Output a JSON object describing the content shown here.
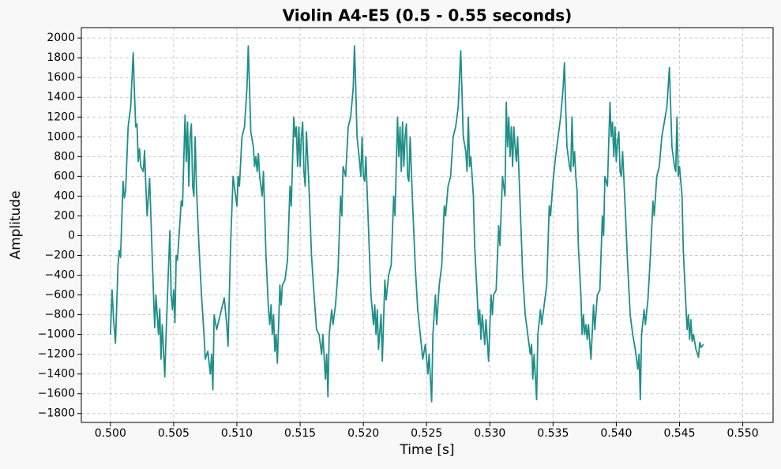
{
  "chart_data": {
    "type": "line",
    "title": "Violin A4-E5 (0.5 - 0.55 seconds)",
    "x_label": "Time [s]",
    "y_label": "Amplitude",
    "xlim": [
      0.4977,
      0.5524
    ],
    "ylim": [
      -1890,
      2105
    ],
    "grid": true,
    "xticks": [
      {
        "value": 0.5,
        "label": "0.500"
      },
      {
        "value": 0.505,
        "label": "0.505"
      },
      {
        "value": 0.51,
        "label": "0.510"
      },
      {
        "value": 0.515,
        "label": "0.515"
      },
      {
        "value": 0.52,
        "label": "0.520"
      },
      {
        "value": 0.525,
        "label": "0.525"
      },
      {
        "value": 0.53,
        "label": "0.530"
      },
      {
        "value": 0.535,
        "label": "0.535"
      },
      {
        "value": 0.54,
        "label": "0.540"
      },
      {
        "value": 0.545,
        "label": "0.545"
      },
      {
        "value": 0.55,
        "label": "0.550"
      }
    ],
    "yticks": [
      {
        "value": -1800,
        "label": "−1800"
      },
      {
        "value": -1600,
        "label": "−1600"
      },
      {
        "value": -1400,
        "label": "−1400"
      },
      {
        "value": -1200,
        "label": "−1200"
      },
      {
        "value": -1000,
        "label": "−1000"
      },
      {
        "value": -800,
        "label": "−800"
      },
      {
        "value": -600,
        "label": "−600"
      },
      {
        "value": -400,
        "label": "−400"
      },
      {
        "value": -200,
        "label": "−200"
      },
      0,
      200,
      400,
      600,
      800,
      1000,
      1200,
      1400,
      1600,
      1800,
      2000
    ],
    "color": "#1f8f88",
    "x": [
      0.5,
      0.50013,
      0.50025,
      0.5004,
      0.5006,
      0.5007,
      0.5008,
      0.501,
      0.5011,
      0.5012,
      0.5014,
      0.5016,
      0.5018,
      0.5019,
      0.502,
      0.5021,
      0.5022,
      0.5023,
      0.5024,
      0.5026,
      0.5027,
      0.5028,
      0.5029,
      0.5031,
      0.5033,
      0.5035,
      0.5036,
      0.5038,
      0.5039,
      0.504,
      0.5041,
      0.5043,
      0.5044,
      0.5047,
      0.5048,
      0.5049,
      0.505,
      0.5051,
      0.5052,
      0.5053,
      0.5056,
      0.5057,
      0.5059,
      0.506,
      0.5061,
      0.5062,
      0.5063,
      0.5064,
      0.5065,
      0.5066,
      0.5067,
      0.5068,
      0.507,
      0.5072,
      0.5074,
      0.5075,
      0.5077,
      0.5079,
      0.508,
      0.5081,
      0.5082,
      0.5084,
      0.509,
      0.5092,
      0.5093,
      0.5095,
      0.5097,
      0.51,
      0.5101,
      0.5102,
      0.5104,
      0.5106,
      0.5108,
      0.5109,
      0.511,
      0.5111,
      0.5113,
      0.5114,
      0.5115,
      0.5116,
      0.5117,
      0.5118,
      0.512,
      0.5121,
      0.5123,
      0.5125,
      0.5126,
      0.5127,
      0.5128,
      0.5129,
      0.513,
      0.5131,
      0.5132,
      0.5134,
      0.5135,
      0.5136,
      0.5138,
      0.514,
      0.5142,
      0.5143,
      0.5145,
      0.5146,
      0.5147,
      0.5148,
      0.5149,
      0.515,
      0.5151,
      0.5152,
      0.5153,
      0.5154,
      0.5155,
      0.5157,
      0.5159,
      0.5161,
      0.5163,
      0.5165,
      0.5167,
      0.5168,
      0.517,
      0.5171,
      0.5172,
      0.5173,
      0.5175,
      0.5176,
      0.5178,
      0.518,
      0.5182,
      0.5183,
      0.5184,
      0.5186,
      0.5188,
      0.519,
      0.5192,
      0.5193,
      0.5194,
      0.5195,
      0.5197,
      0.5198,
      0.5199,
      0.52,
      0.5201,
      0.5202,
      0.5204,
      0.5206,
      0.5208,
      0.5209,
      0.521,
      0.5211,
      0.5212,
      0.5214,
      0.5215,
      0.5217,
      0.5218,
      0.522,
      0.5222,
      0.5224,
      0.5225,
      0.5227,
      0.5228,
      0.5229,
      0.523,
      0.5231,
      0.5232,
      0.5233,
      0.5234,
      0.5235,
      0.5236,
      0.5237,
      0.5239,
      0.5241,
      0.5243,
      0.5245,
      0.5247,
      0.5249,
      0.5251,
      0.5252,
      0.5254,
      0.5255,
      0.5257,
      0.5258,
      0.526,
      0.5262,
      0.5264,
      0.5265,
      0.5267,
      0.5269,
      0.5271,
      0.5273,
      0.5275,
      0.5277,
      0.5278,
      0.5279,
      0.5281,
      0.5282,
      0.5283,
      0.5284,
      0.5285,
      0.5286,
      0.5287,
      0.5288,
      0.529,
      0.5291,
      0.5292,
      0.5293,
      0.5294,
      0.5296,
      0.5297,
      0.5299,
      0.5301,
      0.5302,
      0.5303,
      0.5305,
      0.5307,
      0.5308,
      0.531,
      0.5312,
      0.5313,
      0.5314,
      0.5315,
      0.5316,
      0.5317,
      0.5318,
      0.5319,
      0.532,
      0.5321,
      0.5322,
      0.5324,
      0.5326,
      0.5328,
      0.533,
      0.5332,
      0.5333,
      0.5334,
      0.5335,
      0.5337,
      0.5338,
      0.534,
      0.5341,
      0.5343,
      0.5345,
      0.5347,
      0.5348,
      0.535,
      0.5352,
      0.5354,
      0.5356,
      0.5358,
      0.5359,
      0.536,
      0.5361,
      0.5363,
      0.5364,
      0.5365,
      0.5366,
      0.5367,
      0.5368,
      0.5369,
      0.537,
      0.5372,
      0.5373,
      0.5374,
      0.5375,
      0.5376,
      0.5377,
      0.5378,
      0.538,
      0.5382,
      0.5383,
      0.5385,
      0.5387,
      0.5389,
      0.539,
      0.5391,
      0.5393,
      0.5395,
      0.5396,
      0.5397,
      0.5398,
      0.5399,
      0.54,
      0.5401,
      0.5402,
      0.5403,
      0.5404,
      0.5405,
      0.5407,
      0.5409,
      0.5411,
      0.5413,
      0.5415,
      0.5417,
      0.5418,
      0.5419,
      0.542,
      0.5422,
      0.5423,
      0.5425,
      0.5427,
      0.5429,
      0.543,
      0.5432,
      0.5434,
      0.5436,
      0.5438,
      0.544,
      0.5442,
      0.5443,
      0.5444,
      0.5446,
      0.5447,
      0.5448,
      0.5449,
      0.545,
      0.5451,
      0.5452,
      0.5453,
      0.5455,
      0.5456,
      0.5457,
      0.5458,
      0.5459,
      0.546,
      0.5461,
      0.5463,
      0.5465,
      0.5466,
      0.5467,
      0.5469
    ],
    "values": [
      -1000,
      -550,
      -850,
      -1090,
      -300,
      -150,
      -220,
      550,
      380,
      450,
      1100,
      1300,
      1850,
      1450,
      1100,
      1130,
      750,
      880,
      700,
      650,
      860,
      500,
      200,
      580,
      -200,
      -930,
      -600,
      -1000,
      -740,
      -1250,
      -900,
      -1430,
      -1000,
      50,
      -600,
      -750,
      -550,
      -880,
      -200,
      -250,
      350,
      300,
      1220,
      750,
      1150,
      500,
      1000,
      1130,
      500,
      400,
      1000,
      500,
      -100,
      -600,
      -1000,
      -1250,
      -1170,
      -1400,
      -1200,
      -1560,
      -800,
      -950,
      -630,
      -900,
      -1120,
      -100,
      600,
      300,
      600,
      500,
      1000,
      1100,
      1500,
      1920,
      1500,
      1050,
      900,
      700,
      800,
      650,
      830,
      600,
      400,
      650,
      -200,
      -750,
      -900,
      -700,
      -1000,
      -800,
      -1170,
      -1000,
      -1290,
      -500,
      -700,
      -500,
      -450,
      -250,
      500,
      300,
      1200,
      1000,
      1100,
      700,
      1100,
      700,
      1000,
      1150,
      650,
      500,
      1050,
      500,
      -200,
      -600,
      -950,
      -1000,
      -1200,
      -1000,
      -1450,
      -1200,
      -1630,
      -1000,
      -750,
      -900,
      -700,
      -350,
      400,
      200,
      700,
      600,
      1100,
      1200,
      1500,
      1920,
      1500,
      1000,
      750,
      600,
      1000,
      600,
      550,
      800,
      100,
      -600,
      -900,
      -700,
      -1000,
      -750,
      -1150,
      -800,
      -1270,
      -450,
      -650,
      -400,
      -300,
      400,
      200,
      1200,
      800,
      1100,
      650,
      1150,
      700,
      1000,
      1130,
      600,
      550,
      1000,
      300,
      -300,
      -750,
      -1000,
      -1250,
      -1100,
      -1400,
      -1200,
      -1680,
      -1000,
      -600,
      -900,
      -500,
      -300,
      300,
      200,
      500,
      600,
      1000,
      1100,
      1300,
      1870,
      1450,
      1000,
      850,
      650,
      1200,
      700,
      800,
      600,
      400,
      -100,
      -600,
      -900,
      -750,
      -1050,
      -800,
      -1100,
      -850,
      -1270,
      -600,
      -800,
      -600,
      -550,
      100,
      -100,
      600,
      400,
      1350,
      900,
      1200,
      800,
      1100,
      700,
      1100,
      900,
      750,
      1000,
      300,
      -400,
      -800,
      -1000,
      -1200,
      -1100,
      -1450,
      -1200,
      -1660,
      -1000,
      -750,
      -900,
      -700,
      -500,
      300,
      200,
      550,
      800,
      1000,
      1200,
      1500,
      1750,
      1300,
      900,
      700,
      650,
      1200,
      700,
      850,
      600,
      450,
      -100,
      -600,
      -1000,
      -800,
      -1000,
      -900,
      -1050,
      -900,
      -1250,
      -700,
      -950,
      -600,
      -550,
      200,
      0,
      600,
      500,
      1350,
      1000,
      1150,
      800,
      1100,
      750,
      950,
      1050,
      650,
      600,
      850,
      300,
      -300,
      -800,
      -1000,
      -1150,
      -1350,
      -1200,
      -1660,
      -1000,
      -750,
      -900,
      -650,
      -200,
      350,
      200,
      600,
      700,
      1000,
      1150,
      1300,
      1700,
      1300,
      900,
      700,
      650,
      1200,
      600,
      700,
      550,
      400,
      -150,
      -700,
      -950,
      -800,
      -1050,
      -850,
      -1070,
      -1000,
      -1150,
      -1230,
      -1080,
      -1130,
      -1100
    ]
  }
}
